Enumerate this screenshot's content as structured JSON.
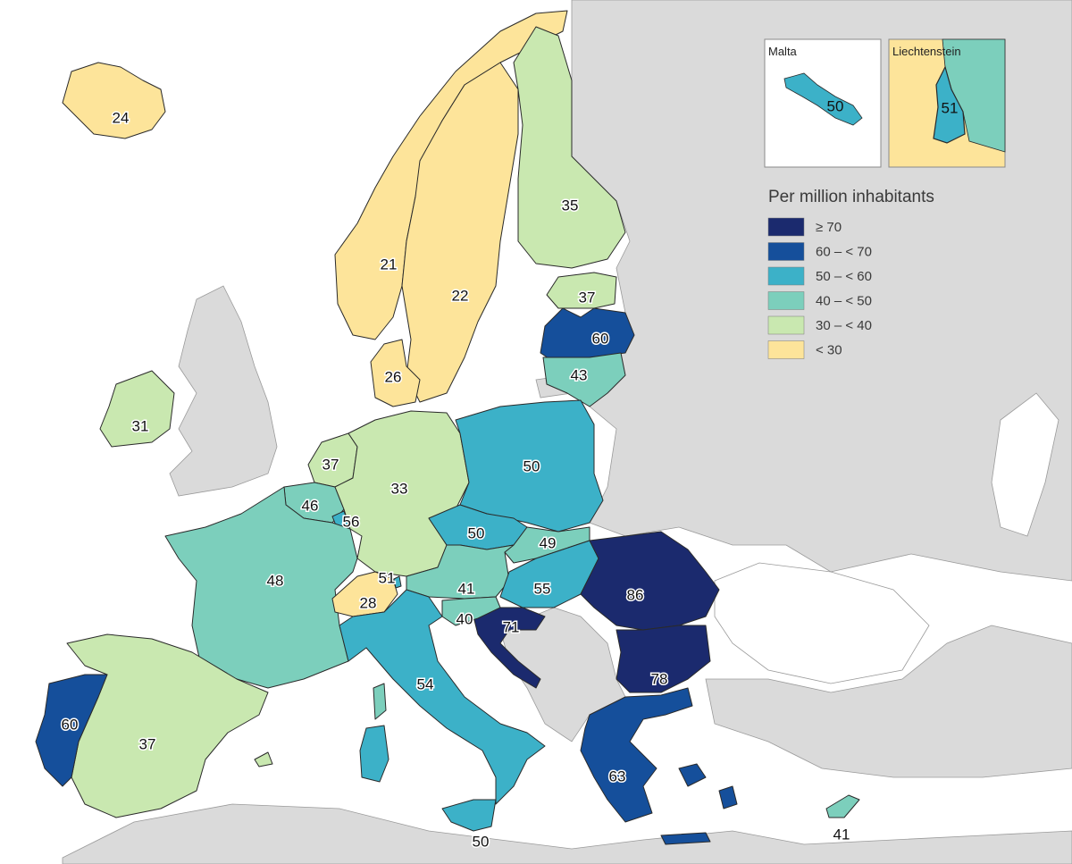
{
  "legend": {
    "title": "Per million inhabitants",
    "classes": [
      {
        "label": "≥ 70",
        "color": "#1b2a6e"
      },
      {
        "label": "60 – < 70",
        "color": "#154f9b"
      },
      {
        "label": "50 – < 60",
        "color": "#3cb1c8"
      },
      {
        "label": "40 – < 50",
        "color": "#7ccfbc"
      },
      {
        "label": "30 – < 40",
        "color": "#c9e8b0"
      },
      {
        "label": "< 30",
        "color": "#fde49a"
      }
    ]
  },
  "insets": {
    "malta": {
      "title": "Malta",
      "value": "50"
    },
    "liechtenstein": {
      "title": "Liechtenstein",
      "value": "51"
    }
  },
  "countries": [
    {
      "name": "Iceland",
      "value": "24",
      "class": "< 30"
    },
    {
      "name": "Norway",
      "value": "21",
      "class": "< 30"
    },
    {
      "name": "Sweden",
      "value": "22",
      "class": "< 30"
    },
    {
      "name": "Finland",
      "value": "35",
      "class": "30 – < 40"
    },
    {
      "name": "Estonia",
      "value": "37",
      "class": "30 – < 40"
    },
    {
      "name": "Latvia",
      "value": "60",
      "class": "60 – < 70"
    },
    {
      "name": "Lithuania",
      "value": "43",
      "class": "40 – < 50"
    },
    {
      "name": "Denmark",
      "value": "26",
      "class": "< 30"
    },
    {
      "name": "Ireland",
      "value": "31",
      "class": "30 – < 40"
    },
    {
      "name": "Netherlands",
      "value": "37",
      "class": "30 – < 40"
    },
    {
      "name": "Belgium",
      "value": "46",
      "class": "40 – < 50"
    },
    {
      "name": "Luxembourg",
      "value": "56",
      "class": "50 – < 60"
    },
    {
      "name": "Germany",
      "value": "33",
      "class": "30 – < 40"
    },
    {
      "name": "Poland",
      "value": "50",
      "class": "50 – < 60"
    },
    {
      "name": "Czechia",
      "value": "50",
      "class": "50 – < 60"
    },
    {
      "name": "Slovakia",
      "value": "49",
      "class": "40 – < 50"
    },
    {
      "name": "Austria",
      "value": "41",
      "class": "40 – < 50"
    },
    {
      "name": "Hungary",
      "value": "55",
      "class": "50 – < 60"
    },
    {
      "name": "Romania",
      "value": "86",
      "class": "≥ 70"
    },
    {
      "name": "Bulgaria",
      "value": "78",
      "class": "≥ 70"
    },
    {
      "name": "Croatia",
      "value": "71",
      "class": "≥ 70"
    },
    {
      "name": "Slovenia",
      "value": "40",
      "class": "40 – < 50"
    },
    {
      "name": "France",
      "value": "48",
      "class": "40 – < 50"
    },
    {
      "name": "Switzerland",
      "value": "28",
      "class": "< 30"
    },
    {
      "name": "Liechtenstein",
      "value": "51",
      "class": "50 – < 60"
    },
    {
      "name": "Italy",
      "value": "54",
      "class": "50 – < 60"
    },
    {
      "name": "Malta",
      "value": "50",
      "class": "50 – < 60"
    },
    {
      "name": "Greece",
      "value": "63",
      "class": "60 – < 70"
    },
    {
      "name": "Cyprus",
      "value": "41",
      "class": "40 – < 50"
    },
    {
      "name": "Spain",
      "value": "37",
      "class": "30 – < 40"
    },
    {
      "name": "Portugal",
      "value": "60",
      "class": "60 – < 70"
    }
  ]
}
